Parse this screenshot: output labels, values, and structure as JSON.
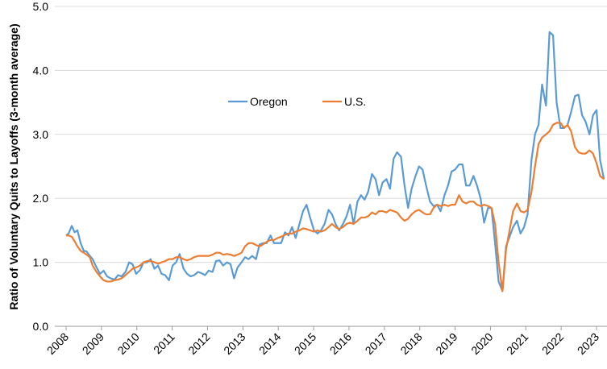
{
  "chart_data": {
    "type": "line",
    "y_label": "Ratio of Voluntary Quits to Layoffs (3-month average)",
    "x": [
      2008.0,
      2008.07,
      2008.16,
      2008.24,
      2008.32,
      2008.41,
      2008.5,
      2008.58,
      2008.67,
      2008.75,
      2008.86,
      2008.96,
      2009.06,
      2009.16,
      2009.26,
      2009.37,
      2009.47,
      2009.57,
      2009.68,
      2009.78,
      2009.88,
      2009.98,
      2010.09,
      2010.19,
      2010.29,
      2010.39,
      2010.5,
      2010.6,
      2010.7,
      2010.8,
      2010.91,
      2011.01,
      2011.11,
      2011.21,
      2011.32,
      2011.42,
      2011.52,
      2011.62,
      2011.73,
      2011.83,
      2011.93,
      2012.03,
      2012.14,
      2012.24,
      2012.34,
      2012.44,
      2012.55,
      2012.65,
      2012.75,
      2012.85,
      2012.96,
      2013.06,
      2013.16,
      2013.26,
      2013.37,
      2013.47,
      2013.57,
      2013.67,
      2013.78,
      2013.88,
      2013.98,
      2014.08,
      2014.19,
      2014.29,
      2014.39,
      2014.49,
      2014.6,
      2014.7,
      2014.8,
      2014.9,
      2015.01,
      2015.11,
      2015.21,
      2015.31,
      2015.42,
      2015.52,
      2015.62,
      2015.72,
      2015.83,
      2015.93,
      2016.03,
      2016.13,
      2016.24,
      2016.34,
      2016.44,
      2016.54,
      2016.65,
      2016.75,
      2016.85,
      2016.95,
      2017.06,
      2017.16,
      2017.26,
      2017.36,
      2017.47,
      2017.57,
      2017.67,
      2017.77,
      2017.88,
      2017.98,
      2018.08,
      2018.18,
      2018.29,
      2018.39,
      2018.49,
      2018.59,
      2018.7,
      2018.8,
      2018.9,
      2019.0,
      2019.11,
      2019.21,
      2019.31,
      2019.41,
      2019.52,
      2019.62,
      2019.72,
      2019.82,
      2019.93,
      2020.03,
      2020.13,
      2020.23,
      2020.34,
      2020.44,
      2020.54,
      2020.64,
      2020.75,
      2020.85,
      2020.95,
      2021.05,
      2021.16,
      2021.26,
      2021.36,
      2021.46,
      2021.57,
      2021.67,
      2021.77,
      2021.87,
      2021.98,
      2022.08,
      2022.18,
      2022.28,
      2022.39,
      2022.49,
      2022.59,
      2022.69,
      2022.8,
      2022.9,
      2023.0,
      2023.1,
      2023.21
    ],
    "series": [
      {
        "name": "Oregon",
        "color": "#5b9bd5",
        "values": [
          1.42,
          1.45,
          1.57,
          1.47,
          1.5,
          1.3,
          1.18,
          1.17,
          1.1,
          1.05,
          0.92,
          0.82,
          0.87,
          0.78,
          0.75,
          0.73,
          0.8,
          0.78,
          0.85,
          1.0,
          0.97,
          0.82,
          0.88,
          1.0,
          1.0,
          1.05,
          0.9,
          0.95,
          0.82,
          0.8,
          0.72,
          0.95,
          1.0,
          1.13,
          0.9,
          0.82,
          0.78,
          0.8,
          0.85,
          0.83,
          0.8,
          0.87,
          0.85,
          1.02,
          1.03,
          0.95,
          1.0,
          0.97,
          0.75,
          0.92,
          1.0,
          1.08,
          1.05,
          1.1,
          1.05,
          1.28,
          1.3,
          1.3,
          1.42,
          1.3,
          1.3,
          1.3,
          1.47,
          1.42,
          1.55,
          1.38,
          1.6,
          1.8,
          1.9,
          1.7,
          1.5,
          1.45,
          1.5,
          1.6,
          1.82,
          1.75,
          1.6,
          1.5,
          1.6,
          1.72,
          1.9,
          1.6,
          1.95,
          2.05,
          1.98,
          2.1,
          2.38,
          2.3,
          2.05,
          2.25,
          2.3,
          2.15,
          2.62,
          2.72,
          2.65,
          2.2,
          1.85,
          2.15,
          2.35,
          2.5,
          2.45,
          2.2,
          1.95,
          1.88,
          1.9,
          1.8,
          2.05,
          2.2,
          2.42,
          2.45,
          2.53,
          2.53,
          2.2,
          2.2,
          2.35,
          2.2,
          2.0,
          1.62,
          1.85,
          1.85,
          1.3,
          0.7,
          0.55,
          1.25,
          1.4,
          1.55,
          1.65,
          1.45,
          1.55,
          1.75,
          2.6,
          3.0,
          3.15,
          3.78,
          3.45,
          4.6,
          4.55,
          3.5,
          3.1,
          3.1,
          3.15,
          3.35,
          3.6,
          3.62,
          3.3,
          3.2,
          3.0,
          3.3,
          3.38,
          2.6,
          2.3
        ]
      },
      {
        "name": "U.S.",
        "color": "#ed7d31",
        "values": [
          1.42,
          1.42,
          1.4,
          1.33,
          1.25,
          1.18,
          1.15,
          1.12,
          1.08,
          0.95,
          0.85,
          0.78,
          0.72,
          0.7,
          0.7,
          0.72,
          0.73,
          0.75,
          0.8,
          0.85,
          0.9,
          0.92,
          0.95,
          1.0,
          1.02,
          1.02,
          1.0,
          0.98,
          1.0,
          1.02,
          1.05,
          1.05,
          1.08,
          1.08,
          1.05,
          1.03,
          1.05,
          1.08,
          1.1,
          1.1,
          1.1,
          1.1,
          1.12,
          1.15,
          1.15,
          1.12,
          1.13,
          1.12,
          1.1,
          1.12,
          1.15,
          1.25,
          1.3,
          1.3,
          1.27,
          1.25,
          1.28,
          1.32,
          1.35,
          1.35,
          1.38,
          1.4,
          1.43,
          1.45,
          1.45,
          1.48,
          1.5,
          1.53,
          1.52,
          1.5,
          1.48,
          1.5,
          1.48,
          1.5,
          1.55,
          1.6,
          1.55,
          1.52,
          1.55,
          1.6,
          1.62,
          1.6,
          1.65,
          1.7,
          1.7,
          1.72,
          1.78,
          1.75,
          1.8,
          1.8,
          1.78,
          1.82,
          1.8,
          1.78,
          1.7,
          1.65,
          1.68,
          1.75,
          1.8,
          1.82,
          1.78,
          1.75,
          1.75,
          1.85,
          1.9,
          1.88,
          1.9,
          1.88,
          1.9,
          1.9,
          2.05,
          1.95,
          1.92,
          1.95,
          1.95,
          1.9,
          1.88,
          1.9,
          1.88,
          1.85,
          1.6,
          1.0,
          0.55,
          1.2,
          1.5,
          1.8,
          1.92,
          1.8,
          1.78,
          1.82,
          2.1,
          2.5,
          2.85,
          2.95,
          3.0,
          3.05,
          3.15,
          3.18,
          3.18,
          3.1,
          3.15,
          3.05,
          2.8,
          2.72,
          2.7,
          2.7,
          2.75,
          2.7,
          2.55,
          2.35,
          2.3
        ]
      }
    ],
    "xlim": [
      2008,
      2023.25
    ],
    "xticks": [
      2008,
      2009,
      2010,
      2011,
      2012,
      2013,
      2014,
      2015,
      2016,
      2017,
      2018,
      2019,
      2020,
      2021,
      2022,
      2023
    ],
    "ylim": [
      0,
      5
    ],
    "yticks": [
      {
        "value": 0,
        "label": "0.0"
      },
      {
        "value": 1,
        "label": "1.0"
      },
      {
        "value": 2,
        "label": "2.0"
      },
      {
        "value": 3,
        "label": "3.0"
      },
      {
        "value": 4,
        "label": "4.0"
      },
      {
        "value": 5,
        "label": "5.0"
      }
    ],
    "grid": true,
    "legend": "top"
  }
}
